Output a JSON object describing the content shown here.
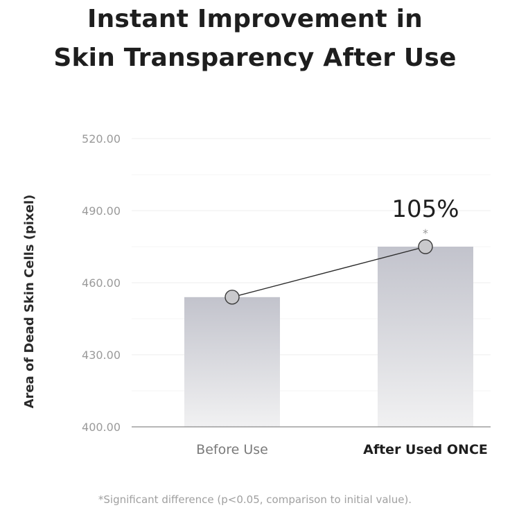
{
  "title_line1": "Instant Improvement in",
  "title_line2": "Skin Transparency After Use",
  "footnote": "*Significant difference (p<0.05, comparison to initial value).",
  "chart_data": {
    "type": "bar",
    "categories": [
      "Before Use",
      "After Used ONCE"
    ],
    "values": [
      454,
      475
    ],
    "ylabel": "Area of Dead Skin Cells (pixel)",
    "ylim": [
      400,
      520
    ],
    "yticks": [
      "400.00",
      "430.00",
      "460.00",
      "490.00",
      "520.00"
    ],
    "ytick_values": [
      400,
      430,
      460,
      490,
      520
    ],
    "annotation": "105%",
    "significance_mark": "*",
    "grid": true,
    "bar_color": "#c4c5ce",
    "line_color": "#2b2b2b",
    "marker_color": "#c9c9cc"
  }
}
